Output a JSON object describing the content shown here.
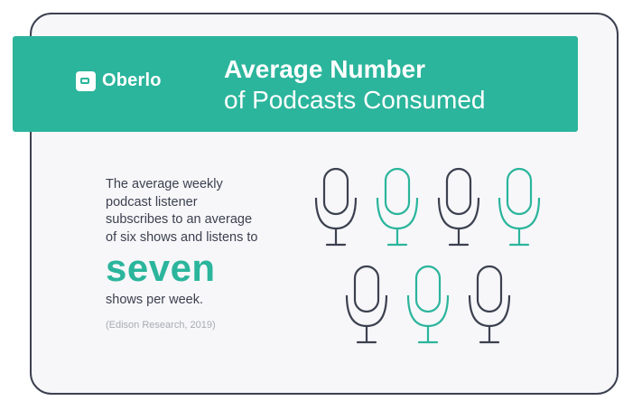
{
  "brand": {
    "logo_text": "Oberlo",
    "colors": {
      "accent": "#2bb59c",
      "dark": "#3c4150",
      "card_bg": "#f7f7f9"
    }
  },
  "header": {
    "title_line1": "Average Number",
    "title_line2": "of Podcasts Consumed"
  },
  "body": {
    "lines": [
      "The average weekly",
      "podcast listener",
      "subscribes to an average",
      "of six shows and listens to"
    ],
    "highlight": "seven",
    "after": "shows per week.",
    "source": "(Edison Research, 2019)"
  },
  "icons": {
    "name": "microphone-icon",
    "count": 7,
    "colors": [
      "dark",
      "teal",
      "dark",
      "teal",
      "dark",
      "teal",
      "dark"
    ]
  }
}
